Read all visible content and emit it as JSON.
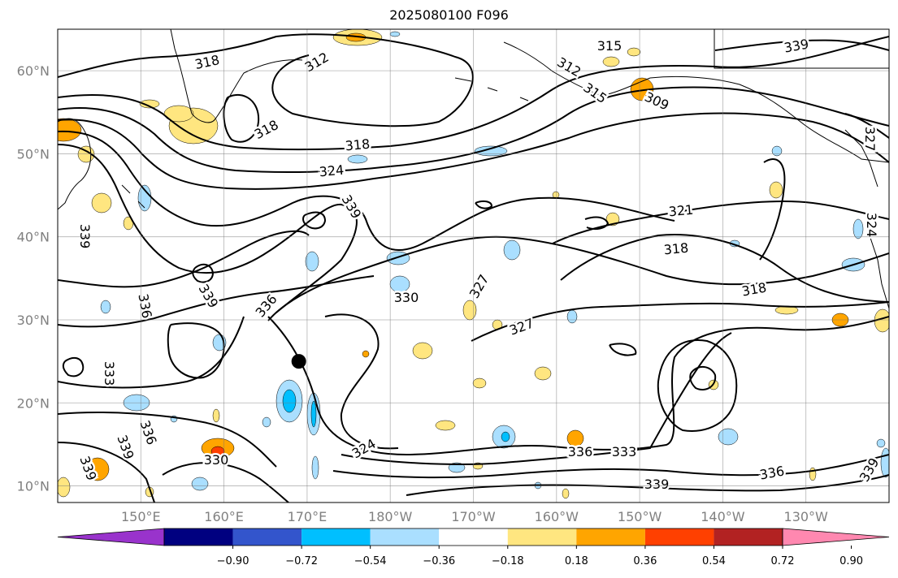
{
  "title": "2025080100 F096",
  "map": {
    "projection": "PlateCarree",
    "lon_range": [
      140,
      240
    ],
    "lat_range": [
      8,
      65
    ],
    "lat_ticks": [
      {
        "value": 10,
        "label": "10°N"
      },
      {
        "value": 20,
        "label": "20°N"
      },
      {
        "value": 30,
        "label": "30°N"
      },
      {
        "value": 40,
        "label": "40°N"
      },
      {
        "value": 50,
        "label": "50°N"
      },
      {
        "value": 60,
        "label": "60°N"
      }
    ],
    "lon_ticks": [
      {
        "value": 150,
        "label": "150°E"
      },
      {
        "value": 160,
        "label": "160°E"
      },
      {
        "value": 170,
        "label": "170°E"
      },
      {
        "value": 180,
        "label": "180°W"
      },
      {
        "value": 190,
        "label": "170°W"
      },
      {
        "value": 200,
        "label": "160°W"
      },
      {
        "value": 210,
        "label": "150°W"
      },
      {
        "value": 220,
        "label": "140°W"
      },
      {
        "value": 230,
        "label": "130°W"
      }
    ],
    "grid": true,
    "contour_labels": [
      "318",
      "312",
      "315",
      "312",
      "309",
      "315",
      "318",
      "318",
      "324",
      "339",
      "321",
      "318",
      "318",
      "327",
      "330",
      "327",
      "336",
      "339",
      "339",
      "336",
      "333",
      "336",
      "339",
      "330",
      "324",
      "336",
      "333",
      "339",
      "336",
      "339",
      "324",
      "327",
      "339",
      "339"
    ],
    "marker": {
      "lon": 169,
      "lat": 25,
      "color": "#000000"
    }
  },
  "colorbar": {
    "ticks": [
      "−0.90",
      "−0.72",
      "−0.54",
      "−0.36",
      "−0.18",
      "0.18",
      "0.36",
      "0.54",
      "0.72",
      "0.90"
    ],
    "colors": [
      "#9933cc",
      "#000080",
      "#3355cc",
      "#00bfff",
      "#aadfff",
      "#ffffff",
      "#ffe680",
      "#ffa500",
      "#ff4000",
      "#b22222",
      "#ff88b0"
    ]
  }
}
